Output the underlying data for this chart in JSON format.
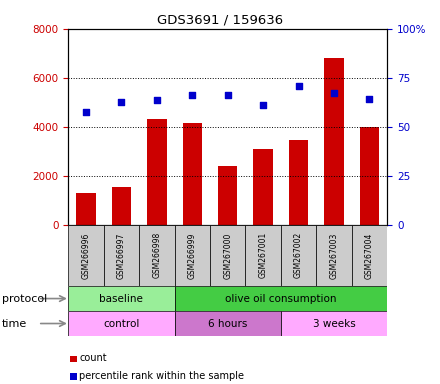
{
  "title": "GDS3691 / 159636",
  "samples": [
    "GSM266996",
    "GSM266997",
    "GSM266998",
    "GSM266999",
    "GSM267000",
    "GSM267001",
    "GSM267002",
    "GSM267003",
    "GSM267004"
  ],
  "counts": [
    1300,
    1550,
    4300,
    4150,
    2400,
    3100,
    3450,
    6800,
    4000
  ],
  "percentile_ranks": [
    57.5,
    62.5,
    63.5,
    66,
    66,
    61,
    71,
    67,
    64
  ],
  "bar_color": "#cc0000",
  "dot_color": "#0000cc",
  "ylim_left": [
    0,
    8000
  ],
  "ylim_right": [
    0,
    100
  ],
  "yticks_left": [
    0,
    2000,
    4000,
    6000,
    8000
  ],
  "ytick_labels_left": [
    "0",
    "2000",
    "4000",
    "6000",
    "8000"
  ],
  "yticks_right": [
    0,
    25,
    50,
    75,
    100
  ],
  "ytick_labels_right": [
    "0",
    "25",
    "50",
    "75",
    "100%"
  ],
  "protocol_groups": [
    {
      "label": "baseline",
      "start": 0,
      "end": 3,
      "color": "#99ee99"
    },
    {
      "label": "olive oil consumption",
      "start": 3,
      "end": 9,
      "color": "#44cc44"
    }
  ],
  "time_groups": [
    {
      "label": "control",
      "start": 0,
      "end": 3,
      "color": "#ffaaff"
    },
    {
      "label": "6 hours",
      "start": 3,
      "end": 6,
      "color": "#cc77cc"
    },
    {
      "label": "3 weeks",
      "start": 6,
      "end": 9,
      "color": "#ffaaff"
    }
  ],
  "legend_count_label": "count",
  "legend_pct_label": "percentile rank within the sample",
  "protocol_label": "protocol",
  "time_label": "time",
  "bar_color_label": "#cc0000",
  "right_axis_color": "#0000cc",
  "sample_box_color": "#cccccc"
}
